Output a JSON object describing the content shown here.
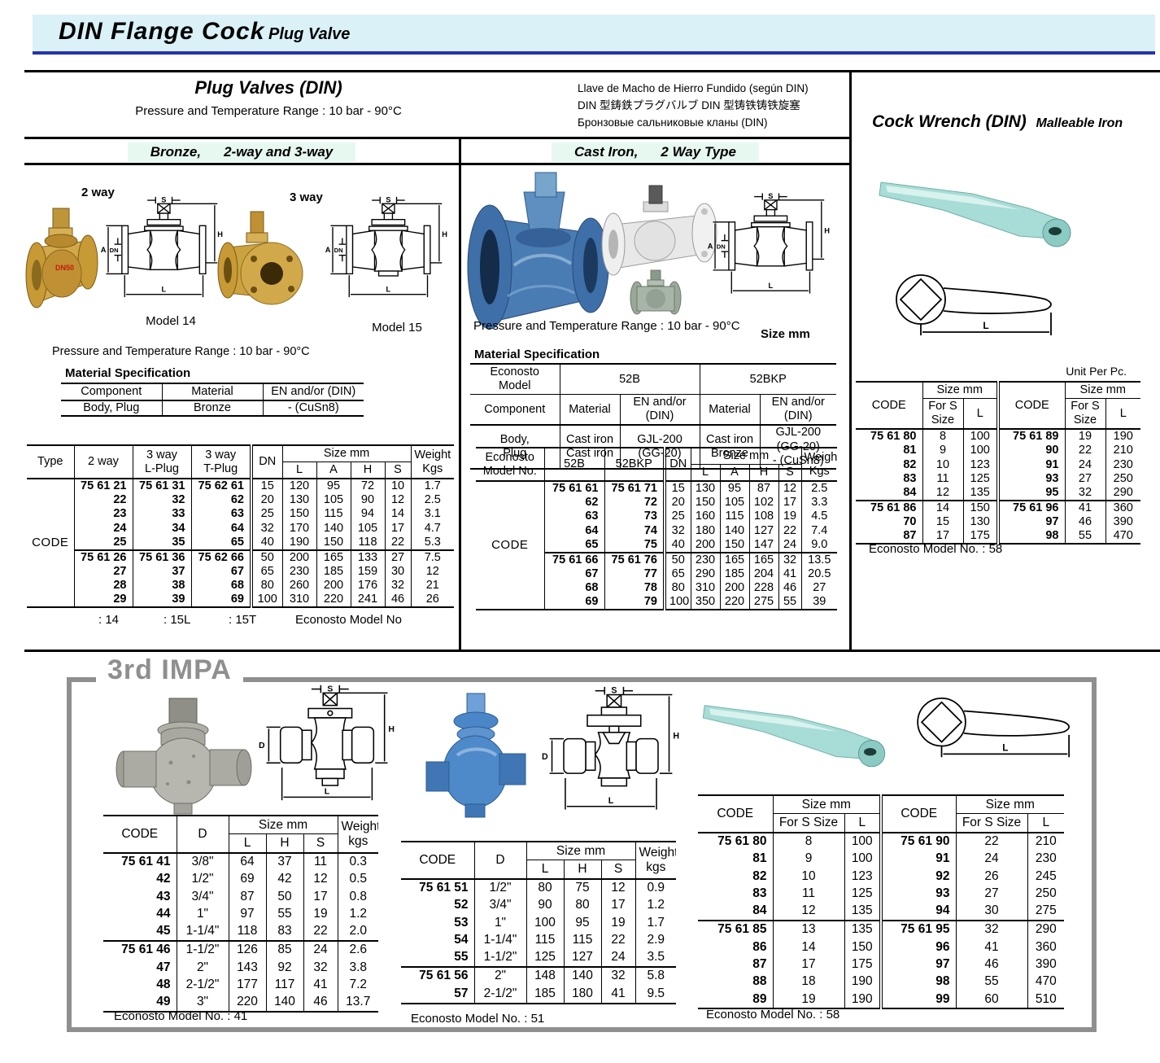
{
  "banner": {
    "title": "DIN Flange Cock",
    "subtitle": "Plug Valve"
  },
  "dims": {
    "s": "S",
    "h": "H",
    "a": "A",
    "dn": "DN",
    "l": "L",
    "d": "D"
  },
  "plug_valves": {
    "title": "Plug Valves (DIN)",
    "range": "Pressure and Temperature Range : 10 bar - 90°C",
    "multilingual": [
      "Llave de Macho de Hierro Fundido (según DIN)",
      "DIN 型鋳鉄プラグバルブ  DIN 型铸铁铸铁旋塞",
      "Бронзовые сальниковые кланы (DIN)"
    ]
  },
  "bronze": {
    "header_part1": "Bronze,",
    "header_part2": "2-way and 3-way",
    "label_2way": "2 way",
    "label_3way": "3 way",
    "model14": "Model 14",
    "model15": "Model 15",
    "photo_mark": "DN50",
    "range": "Pressure and Temperature Range : 10 bar - 90°C",
    "material_title": "Material Specification",
    "material": {
      "headers": [
        "Component",
        "Material",
        "EN and/or (DIN)"
      ],
      "rows": [
        [
          "Body, Plug",
          "Bronze",
          "- (CuSn8)"
        ]
      ]
    },
    "table": {
      "h_type": "Type",
      "h_2way": "2 way",
      "h_lplug": "3 way\nL-Plug",
      "h_tplug": "3 way\nT-Plug",
      "h_dn": "DN",
      "h_size": "Size mm",
      "size_cols": [
        "L",
        "A",
        "H",
        "S"
      ],
      "h_weight": "Weight\nKgs",
      "row_label": "CODE",
      "group_starts": [
        5
      ],
      "code_cols": [
        0,
        1,
        2
      ],
      "dbl_cols": [
        3
      ],
      "rows": [
        [
          "75 61 21",
          "75 61 31",
          "75 62 61",
          "15",
          "120",
          "95",
          "72",
          "10",
          "1.7"
        ],
        [
          "22",
          "32",
          "62",
          "20",
          "130",
          "105",
          "90",
          "12",
          "2.5"
        ],
        [
          "23",
          "33",
          "63",
          "25",
          "150",
          "115",
          "94",
          "14",
          "3.1"
        ],
        [
          "24",
          "34",
          "64",
          "32",
          "170",
          "140",
          "105",
          "17",
          "4.7"
        ],
        [
          "25",
          "35",
          "65",
          "40",
          "190",
          "150",
          "118",
          "22",
          "5.3"
        ],
        [
          "75 61 26",
          "75 61 36",
          "75 62 66",
          "50",
          "200",
          "165",
          "133",
          "27",
          "7.5"
        ],
        [
          "27",
          "37",
          "67",
          "65",
          "230",
          "185",
          "159",
          "30",
          "12"
        ],
        [
          "28",
          "38",
          "68",
          "80",
          "260",
          "200",
          "176",
          "32",
          "21"
        ],
        [
          "29",
          "39",
          "69",
          "100",
          "310",
          "220",
          "241",
          "46",
          "26"
        ]
      ],
      "footer": {
        "f14": ": 14",
        "f15l": ": 15L",
        "f15t": ": 15T",
        "label": "Econosto  Model No"
      }
    }
  },
  "cast_iron": {
    "header_part1": "Cast Iron,",
    "header_part2": "2 Way Type",
    "range": "Pressure and Temperature Range : 10 bar - 90°C",
    "size_mm": "Size mm",
    "material_title": "Material Specification",
    "material": {
      "model_label": "Econosto Model",
      "m52b": "52B",
      "m52bkp": "52BKP",
      "headers": [
        "Component",
        "Material",
        "EN and/or (DIN)",
        "Material",
        "EN and/or (DIN)"
      ],
      "rows": [
        [
          "Body,\nPlug",
          "Cast iron\nCast iron",
          "GJL-200 (GG-20)",
          "Cast iron\nBronze",
          "GJL-200 (GG-20)\n- (CuSn8)"
        ]
      ]
    },
    "table": {
      "h_model": "Econosto\nModel  No.",
      "h_52b": "52B",
      "h_52bkp": "52BKP",
      "h_dn": "DN",
      "h_size": "Size mm",
      "size_cols": [
        "L",
        "A",
        "H",
        "S"
      ],
      "h_weight": "Weight\nKgs",
      "row_label": "CODE",
      "group_starts": [
        5
      ],
      "code_cols": [
        0,
        1
      ],
      "dbl_cols": [
        2
      ],
      "rows": [
        [
          "75 61 61",
          "75 61 71",
          "15",
          "130",
          "95",
          "87",
          "12",
          "2.5"
        ],
        [
          "62",
          "72",
          "20",
          "150",
          "105",
          "102",
          "17",
          "3.3"
        ],
        [
          "63",
          "73",
          "25",
          "160",
          "115",
          "108",
          "19",
          "4.5"
        ],
        [
          "64",
          "74",
          "32",
          "180",
          "140",
          "127",
          "22",
          "7.4"
        ],
        [
          "65",
          "75",
          "40",
          "200",
          "150",
          "147",
          "24",
          "9.0"
        ],
        [
          "75 61 66",
          "75 61 76",
          "50",
          "230",
          "165",
          "165",
          "32",
          "13.5"
        ],
        [
          "67",
          "77",
          "65",
          "290",
          "185",
          "204",
          "41",
          "20.5"
        ],
        [
          "68",
          "78",
          "80",
          "310",
          "200",
          "228",
          "46",
          "27"
        ],
        [
          "69",
          "79",
          "100",
          "350",
          "220",
          "275",
          "55",
          "39"
        ]
      ]
    }
  },
  "cock_wrench": {
    "title": "Cock Wrench (DIN)",
    "subtitle": "Malleable Iron",
    "unit": "Unit Per Pc.",
    "table": {
      "h_code": "CODE",
      "h_size": "Size mm",
      "h_fors": "For S\nSize",
      "h_l": "L",
      "group_starts": [
        5
      ],
      "code_cols": [
        0,
        3
      ],
      "dbl_cols": [
        3
      ],
      "rows": [
        [
          "75 61 80",
          "8",
          "100",
          "75 61 89",
          "19",
          "190"
        ],
        [
          "81",
          "9",
          "100",
          "90",
          "22",
          "210"
        ],
        [
          "82",
          "10",
          "123",
          "91",
          "24",
          "230"
        ],
        [
          "83",
          "11",
          "125",
          "93",
          "27",
          "250"
        ],
        [
          "84",
          "12",
          "135",
          "95",
          "32",
          "290"
        ],
        [
          "75 61 86",
          "14",
          "150",
          "75 61 96",
          "41",
          "360"
        ],
        [
          "70",
          "15",
          "130",
          "97",
          "46",
          "390"
        ],
        [
          "87",
          "17",
          "175",
          "98",
          "55",
          "470"
        ]
      ]
    },
    "footer": "Econosto Model No. : 58"
  },
  "impa": {
    "title": "3rd IMPA",
    "left": {
      "table": {
        "h_code": "CODE",
        "h_d": "D",
        "h_size": "Size mm",
        "size_cols": [
          "L",
          "H",
          "S"
        ],
        "h_weight": "Weight\nkgs",
        "group_starts": [
          5
        ],
        "code_cols": [
          0
        ],
        "rows": [
          [
            "75 61 41",
            "3/8\"",
            "64",
            "37",
            "11",
            "0.3"
          ],
          [
            "42",
            "1/2\"",
            "69",
            "42",
            "12",
            "0.5"
          ],
          [
            "43",
            "3/4\"",
            "87",
            "50",
            "17",
            "0.8"
          ],
          [
            "44",
            "1\"",
            "97",
            "55",
            "19",
            "1.2"
          ],
          [
            "45",
            "1-1/4\"",
            "118",
            "83",
            "22",
            "2.0"
          ],
          [
            "75 61 46",
            "1-1/2\"",
            "126",
            "85",
            "24",
            "2.6"
          ],
          [
            "47",
            "2\"",
            "143",
            "92",
            "32",
            "3.8"
          ],
          [
            "48",
            "2-1/2\"",
            "177",
            "117",
            "41",
            "7.2"
          ],
          [
            "49",
            "3\"",
            "220",
            "140",
            "46",
            "13.7"
          ]
        ]
      },
      "footer": "Econosto Model No. : 41"
    },
    "middle": {
      "table": {
        "h_code": "CODE",
        "h_d": "D",
        "h_size": "Size mm",
        "size_cols": [
          "L",
          "H",
          "S"
        ],
        "h_weight": "Weight\nkgs",
        "group_starts": [
          5
        ],
        "code_cols": [
          0
        ],
        "rows": [
          [
            "75 61 51",
            "1/2\"",
            "80",
            "75",
            "12",
            "0.9"
          ],
          [
            "52",
            "3/4\"",
            "90",
            "80",
            "17",
            "1.2"
          ],
          [
            "53",
            "1\"",
            "100",
            "95",
            "19",
            "1.7"
          ],
          [
            "54",
            "1-1/4\"",
            "115",
            "115",
            "22",
            "2.9"
          ],
          [
            "55",
            "1-1/2\"",
            "125",
            "127",
            "24",
            "3.5"
          ],
          [
            "75 61 56",
            "2\"",
            "148",
            "140",
            "32",
            "5.8"
          ],
          [
            "57",
            "2-1/2\"",
            "185",
            "180",
            "41",
            "9.5"
          ]
        ]
      },
      "footer": "Econosto Model No. : 51"
    },
    "right": {
      "table": {
        "h_code": "CODE",
        "h_size": "Size mm",
        "h_fors": "For S Size",
        "h_l": "L",
        "group_starts": [
          5
        ],
        "code_cols": [
          0,
          3
        ],
        "dbl_cols": [
          3
        ],
        "rows": [
          [
            "75 61 80",
            "8",
            "100",
            "75 61 90",
            "22",
            "210"
          ],
          [
            "81",
            "9",
            "100",
            "91",
            "24",
            "230"
          ],
          [
            "82",
            "10",
            "123",
            "92",
            "26",
            "245"
          ],
          [
            "83",
            "11",
            "125",
            "93",
            "27",
            "250"
          ],
          [
            "84",
            "12",
            "135",
            "94",
            "30",
            "275"
          ],
          [
            "75 61 85",
            "13",
            "135",
            "75 61 95",
            "32",
            "290"
          ],
          [
            "86",
            "14",
            "150",
            "96",
            "41",
            "360"
          ],
          [
            "87",
            "17",
            "175",
            "97",
            "46",
            "390"
          ],
          [
            "88",
            "18",
            "190",
            "98",
            "55",
            "470"
          ],
          [
            "89",
            "19",
            "190",
            "99",
            "60",
            "510"
          ]
        ]
      },
      "footer": "Econosto Model No. : 58"
    }
  }
}
